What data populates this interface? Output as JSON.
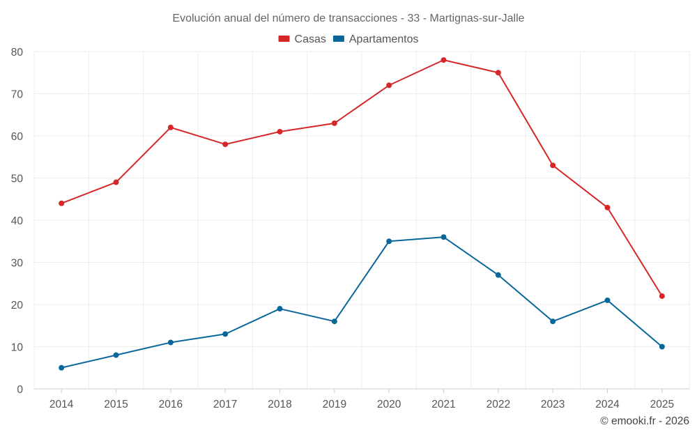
{
  "chart_data": {
    "type": "line",
    "title": "Evolución anual del número de transacciones - 33 - Martignas-sur-Jalle",
    "xlabel": "",
    "ylabel": "",
    "categories": [
      "2014",
      "2015",
      "2016",
      "2017",
      "2018",
      "2019",
      "2020",
      "2021",
      "2022",
      "2023",
      "2024",
      "2025"
    ],
    "ylim": [
      0,
      80
    ],
    "yticks": [
      0,
      10,
      20,
      30,
      40,
      50,
      60,
      70,
      80
    ],
    "grid": true,
    "legend_position": "top-center",
    "series": [
      {
        "name": "Casas",
        "color": "#d62728",
        "values": [
          44,
          49,
          62,
          58,
          61,
          63,
          72,
          78,
          75,
          53,
          43,
          22
        ]
      },
      {
        "name": "Apartamentos",
        "color": "#08679a",
        "values": [
          5,
          8,
          11,
          13,
          19,
          16,
          35,
          36,
          27,
          16,
          21,
          10
        ]
      }
    ]
  },
  "credit": "© emooki.fr - 2026"
}
